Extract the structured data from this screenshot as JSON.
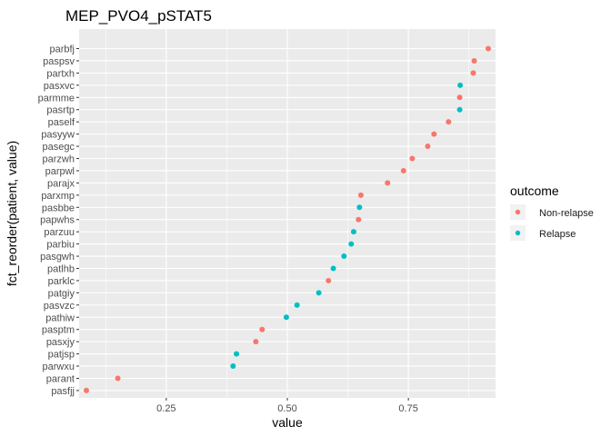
{
  "chart_data": {
    "type": "scatter",
    "title": "MEP_PVO4_pSTAT5",
    "xlabel": "value",
    "ylabel": "fct_reorder(patient, value)",
    "xlim": [
      0.07,
      0.93
    ],
    "x_ticks": [
      0.25,
      0.5,
      0.75
    ],
    "x_tick_labels": [
      "0.25",
      "0.50",
      "0.75"
    ],
    "grid": true,
    "legend": {
      "title": "outcome",
      "placement": "right",
      "entries": [
        {
          "name": "Non-relapse",
          "color": "#F8766D"
        },
        {
          "name": "Relapse",
          "color": "#00BFC4"
        }
      ]
    },
    "categories": [
      "pasfjj",
      "parant",
      "parwxu",
      "patjsp",
      "pasxjy",
      "pasptm",
      "pathiw",
      "pasvzc",
      "patgiy",
      "parklc",
      "patlhb",
      "pasgwh",
      "parbiu",
      "parzuu",
      "papwhs",
      "pasbbe",
      "parxmp",
      "parajx",
      "parpwl",
      "parzwh",
      "pasegc",
      "pasyyw",
      "paself",
      "pasrtp",
      "parmme",
      "pasxvc",
      "partxh",
      "paspsv",
      "parbfj"
    ],
    "points": [
      {
        "patient": "pasfjj",
        "value": 0.085,
        "outcome": "Non-relapse"
      },
      {
        "patient": "parant",
        "value": 0.15,
        "outcome": "Non-relapse"
      },
      {
        "patient": "parwxu",
        "value": 0.388,
        "outcome": "Relapse"
      },
      {
        "patient": "patjsp",
        "value": 0.395,
        "outcome": "Relapse"
      },
      {
        "patient": "pasxjy",
        "value": 0.435,
        "outcome": "Non-relapse"
      },
      {
        "patient": "pasptm",
        "value": 0.448,
        "outcome": "Non-relapse"
      },
      {
        "patient": "pathiw",
        "value": 0.498,
        "outcome": "Relapse"
      },
      {
        "patient": "pasvzc",
        "value": 0.52,
        "outcome": "Relapse"
      },
      {
        "patient": "patgiy",
        "value": 0.565,
        "outcome": "Relapse"
      },
      {
        "patient": "parklc",
        "value": 0.585,
        "outcome": "Non-relapse"
      },
      {
        "patient": "patlhb",
        "value": 0.595,
        "outcome": "Relapse"
      },
      {
        "patient": "pasgwh",
        "value": 0.617,
        "outcome": "Relapse"
      },
      {
        "patient": "parbiu",
        "value": 0.632,
        "outcome": "Relapse"
      },
      {
        "patient": "parzuu",
        "value": 0.637,
        "outcome": "Relapse"
      },
      {
        "patient": "papwhs",
        "value": 0.647,
        "outcome": "Non-relapse"
      },
      {
        "patient": "pasbbe",
        "value": 0.649,
        "outcome": "Relapse"
      },
      {
        "patient": "parxmp",
        "value": 0.652,
        "outcome": "Non-relapse"
      },
      {
        "patient": "parajx",
        "value": 0.707,
        "outcome": "Non-relapse"
      },
      {
        "patient": "parpwl",
        "value": 0.74,
        "outcome": "Non-relapse"
      },
      {
        "patient": "parzwh",
        "value": 0.758,
        "outcome": "Non-relapse"
      },
      {
        "patient": "pasegc",
        "value": 0.79,
        "outcome": "Non-relapse"
      },
      {
        "patient": "pasyyw",
        "value": 0.803,
        "outcome": "Non-relapse"
      },
      {
        "patient": "paself",
        "value": 0.833,
        "outcome": "Non-relapse"
      },
      {
        "patient": "pasrtp",
        "value": 0.856,
        "outcome": "Relapse"
      },
      {
        "patient": "parmme",
        "value": 0.856,
        "outcome": "Non-relapse"
      },
      {
        "patient": "pasxvc",
        "value": 0.857,
        "outcome": "Relapse"
      },
      {
        "patient": "partxh",
        "value": 0.884,
        "outcome": "Non-relapse"
      },
      {
        "patient": "paspsv",
        "value": 0.886,
        "outcome": "Non-relapse"
      },
      {
        "patient": "parbfj",
        "value": 0.915,
        "outcome": "Non-relapse"
      }
    ]
  }
}
